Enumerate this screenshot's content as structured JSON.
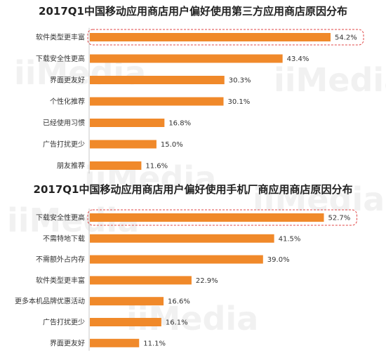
{
  "colors": {
    "bar": "#f0892a",
    "highlight_border": "#e04545",
    "axis": "#c8c8c8"
  },
  "chart_data": [
    {
      "type": "bar",
      "orientation": "horizontal",
      "title": "2017Q1中国移动应用商店用户偏好使用第三方应用商店原因分布",
      "categories": [
        "软件类型更丰富",
        "下载安全性更高",
        "界面更友好",
        "个性化推荐",
        "已经使用习惯",
        "广告打扰更少",
        "朋友推荐"
      ],
      "values": [
        54.2,
        43.4,
        30.3,
        30.1,
        16.8,
        15.0,
        11.6
      ],
      "value_labels": [
        "54.2%",
        "43.4%",
        "30.3%",
        "30.1%",
        "16.8%",
        "15.0%",
        "11.6%"
      ],
      "unit": "%",
      "xlim": [
        0,
        60
      ],
      "highlight_index": 0
    },
    {
      "type": "bar",
      "orientation": "horizontal",
      "title": "2017Q1中国移动应用商店用户偏好使用手机厂商应用商店原因分布",
      "categories": [
        "下载安全性更高",
        "不需特地下载",
        "不需额外占内存",
        "软件类型更丰富",
        "更多本机品牌优惠活动",
        "广告打扰更少",
        "界面更友好"
      ],
      "values": [
        52.7,
        41.5,
        39.0,
        22.9,
        16.6,
        16.1,
        11.1
      ],
      "value_labels": [
        "52.7%",
        "41.5%",
        "39.0%",
        "22.9%",
        "16.6%",
        "16.1%",
        "11.1%"
      ],
      "unit": "%",
      "xlim": [
        0,
        60
      ],
      "highlight_index": 0
    }
  ]
}
